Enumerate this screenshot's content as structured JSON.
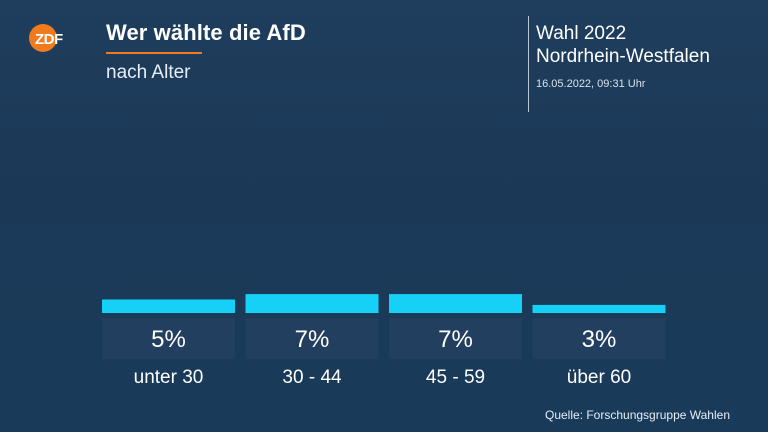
{
  "header": {
    "logo_text": "ZDF",
    "title": "Wer wählte die AfD",
    "subtitle": "nach Alter",
    "election_line1": "Wahl 2022",
    "election_line2": "Nordrhein-Westfalen",
    "timestamp": "16.05.2022, 09:31 Uhr"
  },
  "footer": {
    "source": "Quelle: Forschungsgruppe Wahlen"
  },
  "colors": {
    "bar": "#17d0f5",
    "label_box": "#223f5f",
    "accent": "#f07a1e",
    "logo": "#f07a1e"
  },
  "chart_data": {
    "type": "bar",
    "title": "Wer wählte die AfD",
    "subtitle": "nach Alter",
    "categories": [
      "unter 30",
      "30 - 44",
      "45 - 59",
      "über 60"
    ],
    "values": [
      5,
      7,
      7,
      3
    ],
    "value_labels": [
      "5%",
      "7%",
      "7%",
      "3%"
    ],
    "unit": "%",
    "ylim": [
      0,
      100
    ],
    "grid": false,
    "legend": "none"
  }
}
